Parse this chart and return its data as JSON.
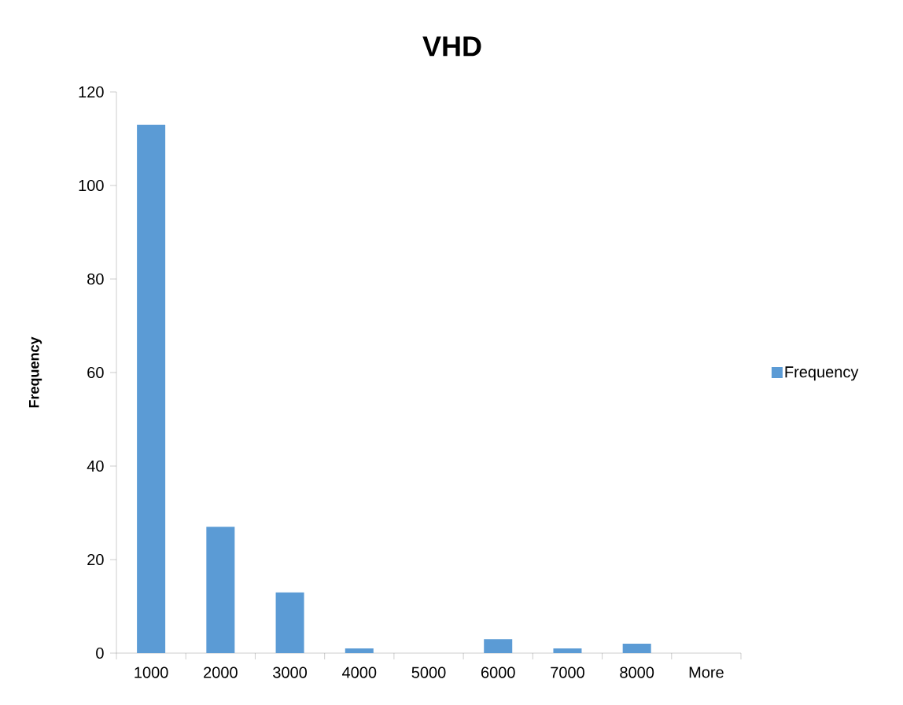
{
  "chart_data": {
    "type": "bar",
    "title": "VHD",
    "ylabel": "Frequency",
    "categories": [
      "1000",
      "2000",
      "3000",
      "4000",
      "5000",
      "6000",
      "7000",
      "8000",
      "More"
    ],
    "series": [
      {
        "name": "Frequency",
        "color": "#5b9bd5",
        "values": [
          113,
          27,
          13,
          1,
          0,
          3,
          1,
          2,
          0
        ]
      }
    ],
    "ylim": [
      0,
      120
    ],
    "yticks": [
      0,
      20,
      40,
      60,
      80,
      100,
      120
    ],
    "grid": false,
    "legend": "right"
  }
}
